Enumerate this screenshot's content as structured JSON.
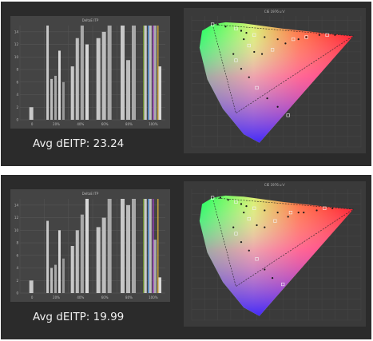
{
  "panels": [
    {
      "avg_label": "Avg dEITP:",
      "avg_value": "23.24",
      "bar_chart_title": "DeltaE ITP",
      "cie_title": "CIE 1976 u'v'"
    },
    {
      "avg_label": "Avg dEITP:",
      "avg_value": "19.99",
      "bar_chart_title": "DeltaE ITP",
      "cie_title": "CIE 1976 u'v'"
    }
  ],
  "chart_data": [
    {
      "type": "bar",
      "title": "DeltaE ITP",
      "categories": [
        "0",
        "20%",
        "40%",
        "60%",
        "80%",
        "100%"
      ],
      "ylim": [
        0,
        15
      ],
      "y_ticks": [
        "0",
        "2",
        "4",
        "6",
        "8",
        "10",
        "12",
        "14"
      ],
      "groups": [
        {
          "category": "0",
          "values": [
            2.0
          ]
        },
        {
          "category": "20%",
          "values": [
            15.0,
            6.5,
            7.0,
            11.0,
            6.0
          ]
        },
        {
          "category": "40%",
          "values": [
            8.5,
            13.0,
            15.0,
            12.0
          ]
        },
        {
          "category": "60%",
          "values": [
            13.0,
            14.0,
            15.0
          ]
        },
        {
          "category": "80%",
          "values": [
            15.0,
            9.5,
            15.0
          ]
        },
        {
          "category": "100%",
          "values": [
            15.0,
            15.0,
            15.0,
            8.5
          ]
        }
      ],
      "bar_colors": [
        "#c8c8c8",
        "#bdbdbd",
        "#a8a8a8",
        "#d8d8d8",
        "#999999"
      ],
      "legend": "none",
      "grid": true
    },
    {
      "type": "scatter",
      "title": "CIE 1976 u'v'",
      "x": [
        0.08,
        0.1,
        0.13,
        0.17,
        0.19,
        0.21,
        0.24,
        0.28,
        0.33,
        0.39,
        0.44,
        0.49,
        0.52,
        0.55,
        0.16,
        0.17,
        0.19,
        0.22,
        0.25,
        0.29,
        0.33,
        0.37,
        0.19,
        0.2,
        0.22,
        0.24,
        0.27,
        0.31,
        0.36,
        0.41,
        0.44
      ],
      "y": [
        0.58,
        0.58,
        0.57,
        0.56,
        0.55,
        0.54,
        0.53,
        0.52,
        0.51,
        0.51,
        0.52,
        0.53,
        0.53,
        0.53,
        0.44,
        0.41,
        0.37,
        0.33,
        0.28,
        0.23,
        0.19,
        0.15,
        0.55,
        0.51,
        0.48,
        0.45,
        0.44,
        0.46,
        0.49,
        0.51,
        0.52
      ],
      "xlim": [
        0.0,
        0.65
      ],
      "ylim": [
        0.0,
        0.62
      ],
      "legend": "none",
      "grid": true
    },
    {
      "type": "bar",
      "title": "DeltaE ITP",
      "categories": [
        "0",
        "20%",
        "40%",
        "60%",
        "80%",
        "100%"
      ],
      "ylim": [
        0,
        15
      ],
      "y_ticks": [
        "0",
        "2",
        "4",
        "6",
        "8",
        "10",
        "12",
        "14"
      ],
      "groups": [
        {
          "category": "0",
          "values": [
            2.0
          ]
        },
        {
          "category": "20%",
          "values": [
            11.5,
            4.0,
            4.5,
            10.0,
            5.5
          ]
        },
        {
          "category": "40%",
          "values": [
            7.5,
            10.0,
            12.5,
            15.0
          ]
        },
        {
          "category": "60%",
          "values": [
            10.5,
            12.0,
            15.0
          ]
        },
        {
          "category": "80%",
          "values": [
            15.0,
            14.0,
            15.0
          ]
        },
        {
          "category": "100%",
          "values": [
            15.0,
            15.0,
            8.5,
            2.5
          ]
        }
      ],
      "bar_colors": [
        "#c8c8c8",
        "#bdbdbd",
        "#a8a8a8",
        "#d8d8d8",
        "#999999"
      ],
      "legend": "none",
      "grid": true
    },
    {
      "type": "scatter",
      "title": "CIE 1976 u'v'",
      "x": [
        0.08,
        0.11,
        0.14,
        0.17,
        0.19,
        0.21,
        0.24,
        0.28,
        0.33,
        0.38,
        0.43,
        0.48,
        0.51,
        0.54,
        0.16,
        0.17,
        0.19,
        0.22,
        0.25,
        0.28,
        0.31,
        0.35,
        0.19,
        0.2,
        0.22,
        0.25,
        0.28,
        0.32,
        0.37,
        0.41
      ],
      "y": [
        0.58,
        0.58,
        0.57,
        0.56,
        0.55,
        0.54,
        0.53,
        0.52,
        0.51,
        0.51,
        0.51,
        0.52,
        0.53,
        0.53,
        0.44,
        0.41,
        0.37,
        0.33,
        0.29,
        0.24,
        0.2,
        0.17,
        0.55,
        0.51,
        0.48,
        0.45,
        0.44,
        0.47,
        0.49,
        0.51
      ],
      "xlim": [
        0.0,
        0.65
      ],
      "ylim": [
        0.0,
        0.62
      ],
      "legend": "none",
      "grid": true
    }
  ]
}
